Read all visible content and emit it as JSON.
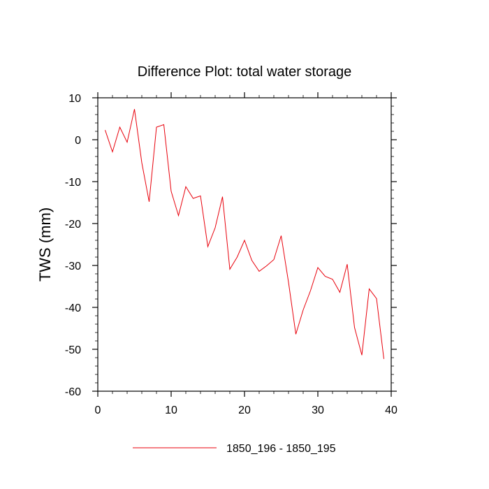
{
  "chart_data": {
    "type": "line",
    "title": "Difference Plot: total water storage",
    "xlabel": "",
    "ylabel": "TWS  (mm)",
    "xlim": [
      0,
      40
    ],
    "ylim": [
      -60,
      10
    ],
    "x_ticks": [
      0,
      10,
      20,
      30,
      40
    ],
    "y_ticks": [
      10,
      0,
      -10,
      -20,
      -30,
      -40,
      -50,
      -60
    ],
    "x_tick_labels": [
      "0",
      "10",
      "20",
      "30",
      "40"
    ],
    "y_tick_labels": [
      "10",
      "0",
      "-10",
      "-20",
      "-30",
      "-40",
      "-50",
      "-60"
    ],
    "grid": false,
    "legend_position": "bottom-center",
    "series": [
      {
        "name": "1850_196 - 1850_195",
        "color": "#e8000b",
        "x": [
          1,
          2,
          3,
          4,
          5,
          6,
          7,
          8,
          9,
          10,
          11,
          12,
          13,
          14,
          15,
          16,
          17,
          18,
          19,
          20,
          21,
          22,
          23,
          24,
          25,
          26,
          27,
          28,
          29,
          30,
          31,
          32,
          33,
          34,
          35,
          36,
          37,
          38,
          39
        ],
        "y": [
          2.3,
          -2.9,
          3.0,
          -0.6,
          7.3,
          -5.5,
          -14.8,
          3.0,
          3.6,
          -12.3,
          -18.1,
          -11.2,
          -14.0,
          -13.4,
          -25.5,
          -21.0,
          -13.6,
          -30.9,
          -28.0,
          -24.0,
          -28.8,
          -31.4,
          -30.1,
          -28.6,
          -22.9,
          -34.0,
          -46.4,
          -40.6,
          -36.0,
          -30.5,
          -32.6,
          -33.3,
          -36.4,
          -29.7,
          -44.8,
          -51.4,
          -35.6,
          -37.9,
          -52.3
        ]
      }
    ]
  }
}
